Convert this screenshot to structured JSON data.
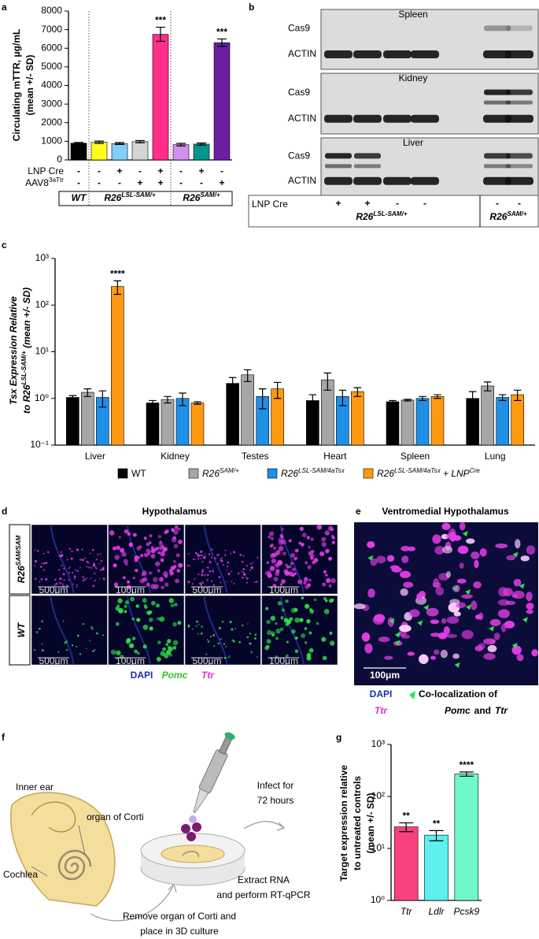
{
  "panel_labels": [
    "a",
    "b",
    "c",
    "d",
    "e",
    "f",
    "g"
  ],
  "chart_data": [
    {
      "type": "bar",
      "ylabel": [
        "Circulating mTTR, μg/mL",
        "(mean +/- SD)"
      ],
      "ylim": [
        0,
        8000
      ],
      "yticks": [
        0,
        1000,
        2000,
        3000,
        4000,
        5000,
        6000,
        7000,
        8000
      ],
      "categories": [
        null,
        null,
        null,
        null,
        null,
        null,
        null,
        null
      ],
      "values": [
        900,
        950,
        880,
        980,
        6750,
        820,
        850,
        6300
      ],
      "errors": [
        40,
        60,
        50,
        60,
        380,
        70,
        60,
        200
      ],
      "colors": [
        "#000000",
        "#ffff1a",
        "#7fd0f5",
        "#d4d4d4",
        "#ff2e8a",
        "#d290f2",
        "#00958a",
        "#6a1fa0"
      ],
      "significance": [
        null,
        null,
        null,
        null,
        "***",
        null,
        null,
        "***"
      ],
      "conditions": [
        {
          "name": [
            "LNP Cre"
          ],
          "values": [
            "-",
            "-",
            "+",
            "-",
            "+",
            "-",
            "+",
            "-"
          ]
        },
        {
          "name": [
            "AAV8",
            "3aTtr"
          ],
          "values": [
            "-",
            "-",
            "-",
            "+",
            "+",
            "-",
            "-",
            "+"
          ]
        }
      ],
      "groups": [
        [
          "WT"
        ],
        [
          "R26",
          "LSL-SAM/+"
        ],
        [
          "R26",
          "SAM/+"
        ]
      ]
    },
    {
      "type": "bar",
      "log": true,
      "ylabel": [
        [
          "Tsx Expression Relative"
        ],
        [
          "to R26",
          "LSL-SAM/+",
          " (mean +/- SD)"
        ]
      ],
      "ylim": [
        0.1,
        1000
      ],
      "yticks": [
        {
          "value": 0.1,
          "label": "10⁻¹"
        },
        {
          "value": 1,
          "label": "10⁰"
        },
        {
          "value": 10,
          "label": "10¹"
        },
        {
          "value": 100,
          "label": "10²"
        },
        {
          "value": 1000,
          "label": "10³"
        }
      ],
      "categories": [
        "Liver",
        "Kidney",
        "Testes",
        "Heart",
        "Spleen",
        "Lung"
      ],
      "series": [
        {
          "name": [
            "WT"
          ],
          "color": "#000000",
          "values": [
            1.05,
            0.8,
            2.1,
            0.9,
            0.85,
            1.0
          ],
          "errors": [
            0.1,
            0.1,
            0.7,
            0.3,
            0.05,
            0.4
          ]
        },
        {
          "name": [
            "R26",
            "SAM/+"
          ],
          "color": "#a6a6a6",
          "values": [
            1.35,
            0.95,
            3.2,
            2.5,
            0.92,
            1.85
          ],
          "errors": [
            0.25,
            0.15,
            0.9,
            1.0,
            0.04,
            0.4
          ]
        },
        {
          "name": [
            "R26",
            "LSL-SAM/4aTsx"
          ],
          "color": "#1e90e8",
          "values": [
            1.05,
            1.0,
            1.1,
            1.1,
            1.0,
            1.05
          ],
          "errors": [
            0.4,
            0.3,
            0.5,
            0.4,
            0.1,
            0.15
          ]
        },
        {
          "name": [
            "R26",
            "LSL-SAM/4aTsx",
            " + LNP",
            "Cre"
          ],
          "color": "#ff9a10",
          "values": [
            250,
            0.8,
            1.6,
            1.4,
            1.1,
            1.2
          ],
          "errors": [
            80,
            0.05,
            0.6,
            0.3,
            0.1,
            0.3
          ],
          "significance": [
            "****",
            null,
            null,
            null,
            null,
            null
          ]
        }
      ]
    },
    {
      "type": "bar",
      "log": true,
      "ylabel": [
        "Target expression relative",
        "to untreated controls",
        "(mean +/- SD)"
      ],
      "ylim": [
        1,
        1000
      ],
      "yticks": [
        {
          "value": 1,
          "label": "10⁰"
        },
        {
          "value": 10,
          "label": "10¹"
        },
        {
          "value": 100,
          "label": "10²"
        },
        {
          "value": 1000,
          "label": "10³"
        }
      ],
      "categories": [
        "Ttr",
        "Ldlr",
        "Pcsk9"
      ],
      "values": [
        26,
        18,
        270
      ],
      "errors": [
        5,
        4,
        25
      ],
      "colors": [
        "#f7427f",
        "#5cf0ee",
        "#6ef7c8"
      ],
      "significance": [
        "**",
        "**",
        "****"
      ]
    }
  ],
  "blot": {
    "tissues": [
      {
        "name": "Spleen",
        "rows": [
          "Cas9",
          "ACTIN"
        ]
      },
      {
        "name": "Kidney",
        "rows": [
          "Cas9",
          "ACTIN"
        ]
      },
      {
        "name": "Liver",
        "rows": [
          "Cas9",
          "ACTIN"
        ]
      }
    ],
    "lnp_cre": {
      "label": "LNP Cre",
      "values": [
        "+",
        "+",
        "-",
        "-",
        "-",
        "-"
      ]
    },
    "groups": [
      [
        "R26",
        "LSL-SAM/+"
      ],
      [
        "R26",
        "SAM/+"
      ]
    ]
  },
  "hypothalamus": {
    "title": "Hypothalamus",
    "rows": [
      {
        "label": [
          "R26",
          "SAM/SAM"
        ],
        "scale_bars": [
          "500μm",
          "100μm",
          "500μm",
          "100μm"
        ]
      },
      {
        "label": [
          "WT"
        ],
        "scale_bars": [
          "500μm",
          "100μm",
          "500μm",
          "100μm"
        ]
      }
    ],
    "legend": [
      "DAPI",
      "Pomc",
      "Ttr"
    ]
  },
  "ventromedial": {
    "title": "Ventromedial Hypothalamus",
    "scale_bar": "100μm",
    "legend": {
      "dapi": "DAPI",
      "ttr": "Ttr",
      "colocalization": [
        "Co-localization of",
        "Pomc",
        "and",
        "Ttr"
      ]
    }
  },
  "protocol": {
    "inner_ear": "Inner ear",
    "organ_of_corti": "organ of Corti",
    "cochlea": "Cochlea",
    "step1": [
      "Remove organ of Corti and",
      "place in 3D culture"
    ],
    "step2": [
      "Infect for",
      "72 hours"
    ],
    "step3": [
      "Extract RNA",
      "and perform RT-qPCR"
    ]
  }
}
